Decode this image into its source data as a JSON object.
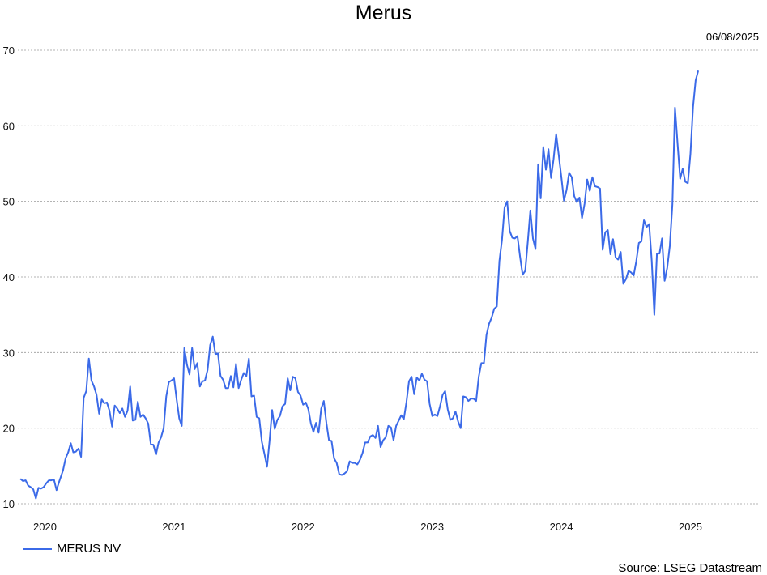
{
  "chart_data": {
    "type": "line",
    "title": "Merus",
    "date_label": "06/08/2025",
    "source": "Source: LSEG Datastream",
    "xlabel": "",
    "ylabel": "",
    "x_range": [
      2019.79,
      2025.53
    ],
    "ylim": [
      10,
      70
    ],
    "y_ticks": [
      10,
      20,
      30,
      40,
      50,
      60,
      70
    ],
    "x_ticks": [
      {
        "label": "2020",
        "value": 2020.0
      },
      {
        "label": "2021",
        "value": 2021.0
      },
      {
        "label": "2022",
        "value": 2022.0
      },
      {
        "label": "2023",
        "value": 2023.0
      },
      {
        "label": "2024",
        "value": 2024.0
      },
      {
        "label": "2025",
        "value": 2025.0
      }
    ],
    "grid": "horizontal dotted",
    "legend_position": "bottom-left",
    "color": "#3b6ae8",
    "series": [
      {
        "name": "MERUS NV",
        "points": [
          [
            2019.81,
            13.3
          ],
          [
            2019.83,
            13.0
          ],
          [
            2019.85,
            13.1
          ],
          [
            2019.87,
            12.4
          ],
          [
            2019.89,
            12.2
          ],
          [
            2019.91,
            11.9
          ],
          [
            2019.93,
            10.7
          ],
          [
            2019.95,
            12.1
          ],
          [
            2019.97,
            12.0
          ],
          [
            2019.99,
            12.2
          ],
          [
            2020.01,
            12.7
          ],
          [
            2020.03,
            13.1
          ],
          [
            2020.05,
            13.1
          ],
          [
            2020.07,
            13.2
          ],
          [
            2020.09,
            11.8
          ],
          [
            2020.11,
            12.9
          ],
          [
            2020.14,
            14.4
          ],
          [
            2020.16,
            16.0
          ],
          [
            2020.18,
            16.8
          ],
          [
            2020.2,
            18.0
          ],
          [
            2020.22,
            16.8
          ],
          [
            2020.24,
            16.9
          ],
          [
            2020.26,
            17.3
          ],
          [
            2020.28,
            16.2
          ],
          [
            2020.3,
            24.0
          ],
          [
            2020.32,
            24.9
          ],
          [
            2020.34,
            29.2
          ],
          [
            2020.36,
            26.3
          ],
          [
            2020.38,
            25.5
          ],
          [
            2020.4,
            24.4
          ],
          [
            2020.42,
            21.9
          ],
          [
            2020.44,
            23.8
          ],
          [
            2020.46,
            23.3
          ],
          [
            2020.48,
            23.4
          ],
          [
            2020.5,
            22.3
          ],
          [
            2020.52,
            20.2
          ],
          [
            2020.54,
            23.0
          ],
          [
            2020.56,
            22.6
          ],
          [
            2020.58,
            22.0
          ],
          [
            2020.6,
            22.6
          ],
          [
            2020.62,
            21.5
          ],
          [
            2020.64,
            22.3
          ],
          [
            2020.66,
            25.5
          ],
          [
            2020.68,
            21.0
          ],
          [
            2020.7,
            21.1
          ],
          [
            2020.72,
            23.5
          ],
          [
            2020.74,
            21.5
          ],
          [
            2020.76,
            21.8
          ],
          [
            2020.78,
            21.3
          ],
          [
            2020.8,
            20.6
          ],
          [
            2020.82,
            17.9
          ],
          [
            2020.84,
            17.8
          ],
          [
            2020.86,
            16.5
          ],
          [
            2020.88,
            18.1
          ],
          [
            2020.9,
            18.8
          ],
          [
            2020.92,
            20.0
          ],
          [
            2020.94,
            24.2
          ],
          [
            2020.96,
            26.1
          ],
          [
            2020.98,
            26.3
          ],
          [
            2021.0,
            26.6
          ],
          [
            2021.02,
            23.8
          ],
          [
            2021.04,
            21.3
          ],
          [
            2021.06,
            20.3
          ],
          [
            2021.08,
            30.6
          ],
          [
            2021.1,
            28.4
          ],
          [
            2021.12,
            27.1
          ],
          [
            2021.14,
            30.6
          ],
          [
            2021.16,
            27.8
          ],
          [
            2021.18,
            28.6
          ],
          [
            2021.2,
            25.5
          ],
          [
            2021.22,
            26.2
          ],
          [
            2021.24,
            26.3
          ],
          [
            2021.26,
            27.7
          ],
          [
            2021.28,
            31.0
          ],
          [
            2021.3,
            32.1
          ],
          [
            2021.32,
            29.8
          ],
          [
            2021.34,
            29.9
          ],
          [
            2021.36,
            26.9
          ],
          [
            2021.38,
            26.4
          ],
          [
            2021.4,
            25.3
          ],
          [
            2021.42,
            25.3
          ],
          [
            2021.44,
            26.9
          ],
          [
            2021.46,
            25.4
          ],
          [
            2021.48,
            28.5
          ],
          [
            2021.5,
            25.3
          ],
          [
            2021.52,
            26.4
          ],
          [
            2021.54,
            27.3
          ],
          [
            2021.56,
            26.9
          ],
          [
            2021.58,
            29.2
          ],
          [
            2021.6,
            24.2
          ],
          [
            2021.62,
            24.3
          ],
          [
            2021.64,
            21.5
          ],
          [
            2021.66,
            21.3
          ],
          [
            2021.68,
            18.2
          ],
          [
            2021.7,
            16.6
          ],
          [
            2021.72,
            14.9
          ],
          [
            2021.74,
            18.3
          ],
          [
            2021.76,
            22.4
          ],
          [
            2021.78,
            19.9
          ],
          [
            2021.8,
            21.1
          ],
          [
            2021.82,
            21.6
          ],
          [
            2021.84,
            22.9
          ],
          [
            2021.86,
            23.2
          ],
          [
            2021.88,
            26.6
          ],
          [
            2021.9,
            25.0
          ],
          [
            2021.92,
            26.8
          ],
          [
            2021.94,
            26.6
          ],
          [
            2021.96,
            24.8
          ],
          [
            2021.98,
            24.3
          ],
          [
            2022.0,
            23.1
          ],
          [
            2022.02,
            23.4
          ],
          [
            2022.04,
            22.5
          ],
          [
            2022.06,
            20.6
          ],
          [
            2022.08,
            19.5
          ],
          [
            2022.1,
            20.7
          ],
          [
            2022.12,
            19.4
          ],
          [
            2022.14,
            22.6
          ],
          [
            2022.16,
            23.6
          ],
          [
            2022.18,
            20.7
          ],
          [
            2022.2,
            18.4
          ],
          [
            2022.22,
            18.3
          ],
          [
            2022.24,
            16.0
          ],
          [
            2022.26,
            15.4
          ],
          [
            2022.28,
            13.9
          ],
          [
            2022.3,
            13.8
          ],
          [
            2022.32,
            14.0
          ],
          [
            2022.34,
            14.3
          ],
          [
            2022.36,
            15.6
          ],
          [
            2022.38,
            15.4
          ],
          [
            2022.4,
            15.4
          ],
          [
            2022.42,
            15.2
          ],
          [
            2022.44,
            15.8
          ],
          [
            2022.46,
            16.7
          ],
          [
            2022.48,
            18.1
          ],
          [
            2022.5,
            18.1
          ],
          [
            2022.52,
            18.9
          ],
          [
            2022.54,
            19.1
          ],
          [
            2022.56,
            18.7
          ],
          [
            2022.58,
            20.3
          ],
          [
            2022.6,
            17.5
          ],
          [
            2022.62,
            18.4
          ],
          [
            2022.64,
            18.8
          ],
          [
            2022.66,
            20.3
          ],
          [
            2022.68,
            20.1
          ],
          [
            2022.7,
            18.4
          ],
          [
            2022.72,
            20.3
          ],
          [
            2022.74,
            21.0
          ],
          [
            2022.76,
            21.7
          ],
          [
            2022.78,
            21.2
          ],
          [
            2022.8,
            23.4
          ],
          [
            2022.82,
            26.2
          ],
          [
            2022.84,
            26.8
          ],
          [
            2022.86,
            24.5
          ],
          [
            2022.88,
            26.7
          ],
          [
            2022.9,
            26.3
          ],
          [
            2022.92,
            27.2
          ],
          [
            2022.94,
            26.4
          ],
          [
            2022.96,
            26.2
          ],
          [
            2022.98,
            23.2
          ],
          [
            2023.0,
            21.6
          ],
          [
            2023.02,
            21.8
          ],
          [
            2023.04,
            21.6
          ],
          [
            2023.06,
            22.9
          ],
          [
            2023.08,
            24.4
          ],
          [
            2023.1,
            24.9
          ],
          [
            2023.12,
            22.5
          ],
          [
            2023.14,
            21.1
          ],
          [
            2023.16,
            21.3
          ],
          [
            2023.18,
            22.2
          ],
          [
            2023.2,
            20.9
          ],
          [
            2023.22,
            20.0
          ],
          [
            2023.24,
            24.2
          ],
          [
            2023.26,
            24.1
          ],
          [
            2023.28,
            23.6
          ],
          [
            2023.3,
            23.9
          ],
          [
            2023.32,
            23.9
          ],
          [
            2023.34,
            23.6
          ],
          [
            2023.36,
            26.8
          ],
          [
            2023.38,
            28.6
          ],
          [
            2023.4,
            28.6
          ],
          [
            2023.42,
            32.3
          ],
          [
            2023.44,
            33.8
          ],
          [
            2023.46,
            34.6
          ],
          [
            2023.48,
            35.8
          ],
          [
            2023.5,
            36.1
          ],
          [
            2023.52,
            42.1
          ],
          [
            2023.54,
            44.9
          ],
          [
            2023.56,
            49.2
          ],
          [
            2023.58,
            50.0
          ],
          [
            2023.6,
            46.1
          ],
          [
            2023.62,
            45.2
          ],
          [
            2023.64,
            45.1
          ],
          [
            2023.66,
            45.4
          ],
          [
            2023.68,
            42.7
          ],
          [
            2023.7,
            40.3
          ],
          [
            2023.72,
            40.8
          ],
          [
            2023.74,
            44.7
          ],
          [
            2023.76,
            48.8
          ],
          [
            2023.78,
            45.1
          ],
          [
            2023.8,
            43.7
          ],
          [
            2023.82,
            54.9
          ],
          [
            2023.84,
            50.4
          ],
          [
            2023.86,
            57.2
          ],
          [
            2023.88,
            54.2
          ],
          [
            2023.9,
            56.9
          ],
          [
            2023.92,
            53.1
          ],
          [
            2023.94,
            55.6
          ],
          [
            2023.96,
            58.9
          ],
          [
            2023.98,
            56.1
          ],
          [
            2024.0,
            53.2
          ],
          [
            2024.02,
            50.1
          ],
          [
            2024.04,
            51.5
          ],
          [
            2024.06,
            53.8
          ],
          [
            2024.08,
            53.2
          ],
          [
            2024.1,
            50.7
          ],
          [
            2024.12,
            49.9
          ],
          [
            2024.14,
            50.5
          ],
          [
            2024.16,
            47.8
          ],
          [
            2024.18,
            49.7
          ],
          [
            2024.2,
            52.9
          ],
          [
            2024.22,
            51.4
          ],
          [
            2024.24,
            53.2
          ],
          [
            2024.26,
            52.0
          ],
          [
            2024.28,
            51.9
          ],
          [
            2024.3,
            51.7
          ],
          [
            2024.32,
            43.6
          ],
          [
            2024.34,
            45.9
          ],
          [
            2024.36,
            46.2
          ],
          [
            2024.38,
            43.0
          ],
          [
            2024.4,
            45.0
          ],
          [
            2024.42,
            42.6
          ],
          [
            2024.44,
            42.3
          ],
          [
            2024.46,
            43.3
          ],
          [
            2024.48,
            39.1
          ],
          [
            2024.5,
            39.7
          ],
          [
            2024.52,
            40.8
          ],
          [
            2024.54,
            40.6
          ],
          [
            2024.56,
            40.2
          ],
          [
            2024.58,
            42.1
          ],
          [
            2024.6,
            44.5
          ],
          [
            2024.62,
            44.7
          ],
          [
            2024.64,
            47.5
          ],
          [
            2024.66,
            46.6
          ],
          [
            2024.68,
            47.0
          ],
          [
            2024.7,
            42.1
          ],
          [
            2024.72,
            35.0
          ],
          [
            2024.74,
            43.1
          ],
          [
            2024.76,
            43.1
          ],
          [
            2024.78,
            45.1
          ],
          [
            2024.8,
            39.5
          ],
          [
            2024.82,
            41.2
          ],
          [
            2024.84,
            44.1
          ],
          [
            2024.86,
            49.6
          ],
          [
            2024.88,
            62.4
          ],
          [
            2024.9,
            57.6
          ],
          [
            2024.92,
            53.0
          ],
          [
            2024.94,
            54.3
          ],
          [
            2024.96,
            52.6
          ],
          [
            2024.98,
            52.4
          ],
          [
            2025.0,
            56.3
          ],
          [
            2025.02,
            62.5
          ],
          [
            2025.04,
            66.0
          ],
          [
            2025.06,
            67.3
          ]
        ]
      }
    ]
  }
}
